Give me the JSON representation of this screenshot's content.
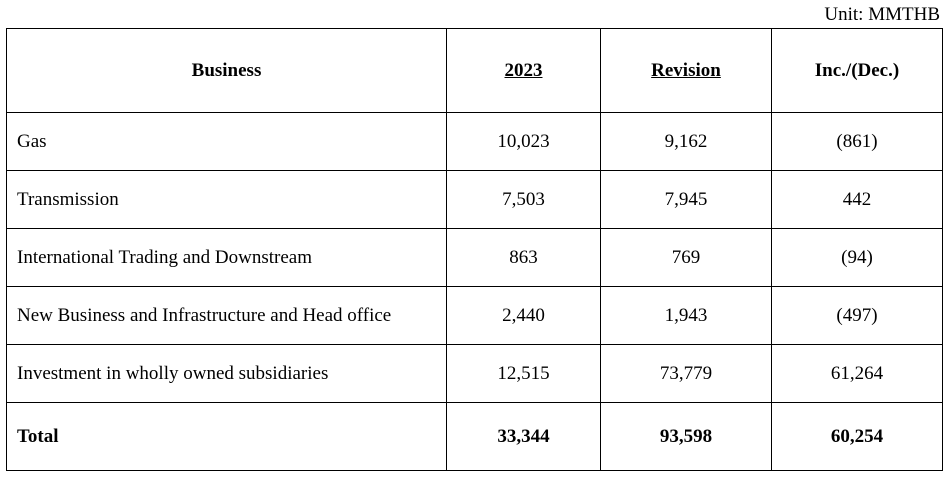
{
  "unit": "Unit: MMTHB",
  "headers": {
    "business": "Business",
    "year": "2023",
    "revision": "Revision",
    "change": "Inc./(Dec.)"
  },
  "rows": [
    {
      "business": "Gas",
      "year": "10,023",
      "revision": "9,162",
      "change": "(861)"
    },
    {
      "business": "Transmission",
      "year": "7,503",
      "revision": "7,945",
      "change": "442"
    },
    {
      "business": "International Trading and Downstream",
      "year": "863",
      "revision": "769",
      "change": "(94)"
    },
    {
      "business": "New Business and Infrastructure and Head office",
      "year": "2,440",
      "revision": "1,943",
      "change": "(497)"
    },
    {
      "business": "Investment in wholly owned subsidiaries",
      "year": "12,515",
      "revision": "73,779",
      "change": "61,264"
    }
  ],
  "total": {
    "business": "Total",
    "year": "33,344",
    "revision": "93,598",
    "change": "60,254"
  }
}
